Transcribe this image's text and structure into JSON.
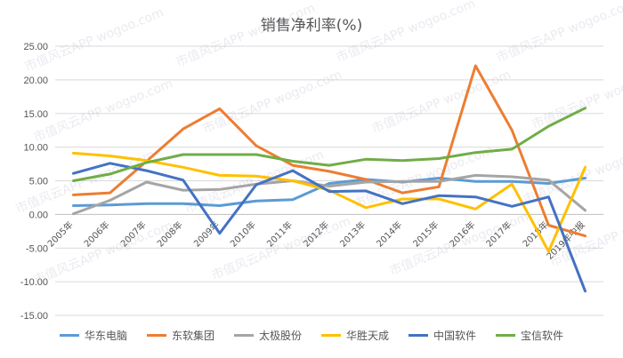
{
  "chart_data": {
    "type": "line",
    "title": "销售净利率(%)",
    "categories": [
      "2005年",
      "2006年",
      "2007年",
      "2008年",
      "2009年",
      "2010年",
      "2011年",
      "2012年",
      "2013年",
      "2014年",
      "2015年",
      "2016年",
      "2017年",
      "2018年",
      "2019年中报"
    ],
    "ylim": [
      -15,
      25
    ],
    "yticks": [
      "-15.00",
      "-10.00",
      "-5.00",
      "0.00",
      "5.00",
      "10.00",
      "15.00",
      "20.00",
      "25.00"
    ],
    "grid": true,
    "legend_position": "bottom",
    "series": [
      {
        "name": "华东电脑",
        "color": "#5B9BD5",
        "values": [
          1.3,
          1.4,
          1.6,
          1.6,
          1.3,
          2.0,
          2.2,
          4.6,
          5.2,
          4.8,
          5.4,
          4.9,
          4.9,
          4.6,
          5.4
        ]
      },
      {
        "name": "东软集团",
        "color": "#ED7D31",
        "values": [
          2.9,
          3.2,
          7.9,
          12.7,
          15.7,
          10.2,
          7.3,
          6.4,
          5.2,
          3.2,
          4.1,
          22.1,
          12.5,
          -1.6,
          -3.2
        ]
      },
      {
        "name": "太极股份",
        "color": "#A5A5A5",
        "values": [
          0.1,
          2.1,
          4.8,
          3.6,
          3.7,
          4.5,
          5.0,
          4.2,
          4.8,
          4.9,
          4.9,
          5.8,
          5.6,
          5.1,
          0.6
        ]
      },
      {
        "name": "华胜天成",
        "color": "#FFC000",
        "values": [
          9.1,
          8.7,
          8.0,
          7.0,
          5.8,
          5.7,
          5.0,
          3.6,
          1.0,
          2.3,
          2.3,
          0.8,
          4.5,
          -5.5,
          7.0
        ]
      },
      {
        "name": "中国软件",
        "color": "#4472C4",
        "values": [
          6.1,
          7.6,
          6.5,
          5.1,
          -2.8,
          4.4,
          6.5,
          3.4,
          3.5,
          1.6,
          2.8,
          2.6,
          1.2,
          2.6,
          -11.4
        ]
      },
      {
        "name": "宝信软件",
        "color": "#70AD47",
        "values": [
          5.0,
          6.0,
          7.7,
          8.9,
          8.9,
          8.9,
          7.9,
          7.3,
          8.2,
          8.0,
          8.3,
          9.2,
          9.7,
          13.1,
          15.8
        ]
      }
    ],
    "watermark": "市值风云APP  wogoo.com"
  }
}
